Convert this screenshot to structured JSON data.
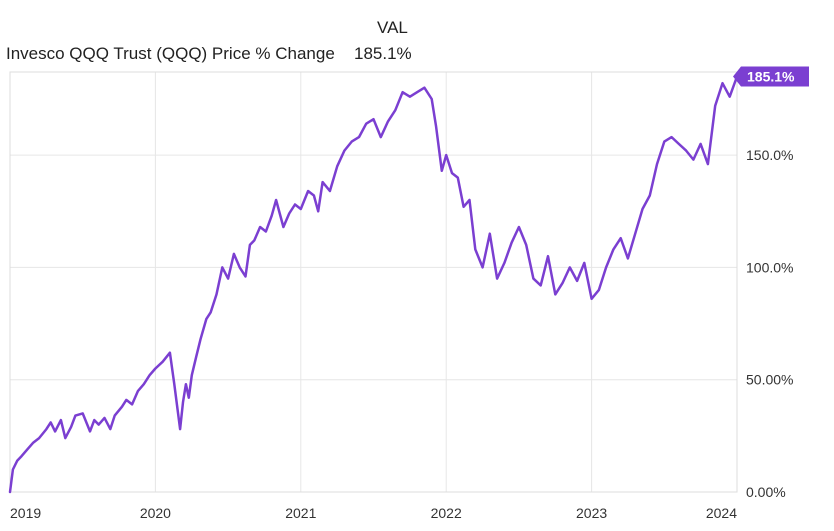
{
  "legend": {
    "column_header": "VAL",
    "series_name": "Invesco QQQ Trust (QQQ) Price % Change",
    "series_value": "185.1%"
  },
  "chart_data": {
    "type": "line",
    "title": "",
    "xlabel": "",
    "ylabel": "",
    "x_ticks": [
      "2019",
      "2020",
      "2021",
      "2022",
      "2023",
      "2024"
    ],
    "y_ticks": [
      "0.00%",
      "50.00%",
      "100.0%",
      "150.0%"
    ],
    "xlim": [
      2019.0,
      2024.0
    ],
    "ylim": [
      0,
      187
    ],
    "grid": true,
    "line_color": "#7b3fd1",
    "end_label": "185.1%",
    "series": [
      {
        "name": "Invesco QQQ Trust (QQQ) Price % Change",
        "x": [
          2019.0,
          2019.02,
          2019.05,
          2019.08,
          2019.12,
          2019.16,
          2019.2,
          2019.25,
          2019.28,
          2019.31,
          2019.35,
          2019.38,
          2019.42,
          2019.45,
          2019.5,
          2019.55,
          2019.58,
          2019.61,
          2019.65,
          2019.69,
          2019.72,
          2019.77,
          2019.8,
          2019.84,
          2019.88,
          2019.92,
          2019.96,
          2020.0,
          2020.05,
          2020.1,
          2020.13,
          2020.15,
          2020.17,
          2020.19,
          2020.21,
          2020.23,
          2020.25,
          2020.28,
          2020.31,
          2020.35,
          2020.38,
          2020.42,
          2020.46,
          2020.5,
          2020.54,
          2020.58,
          2020.62,
          2020.65,
          2020.68,
          2020.72,
          2020.76,
          2020.8,
          2020.83,
          2020.88,
          2020.92,
          2020.96,
          2021.0,
          2021.05,
          2021.09,
          2021.12,
          2021.15,
          2021.2,
          2021.25,
          2021.3,
          2021.35,
          2021.4,
          2021.45,
          2021.5,
          2021.55,
          2021.6,
          2021.65,
          2021.7,
          2021.75,
          2021.8,
          2021.85,
          2021.9,
          2021.93,
          2021.97,
          2022.0,
          2022.04,
          2022.08,
          2022.12,
          2022.16,
          2022.2,
          2022.25,
          2022.3,
          2022.35,
          2022.4,
          2022.45,
          2022.5,
          2022.55,
          2022.6,
          2022.65,
          2022.7,
          2022.75,
          2022.8,
          2022.85,
          2022.9,
          2022.95,
          2023.0,
          2023.05,
          2023.1,
          2023.15,
          2023.2,
          2023.25,
          2023.3,
          2023.35,
          2023.4,
          2023.45,
          2023.5,
          2023.55,
          2023.6,
          2023.65,
          2023.7,
          2023.75,
          2023.8,
          2023.85,
          2023.9,
          2023.95,
          2024.0
        ],
        "y": [
          0,
          10,
          14,
          16,
          19,
          22,
          24,
          28,
          31,
          27,
          32,
          24,
          29,
          34,
          35,
          27,
          32,
          30,
          33,
          28,
          34,
          38,
          41,
          39,
          45,
          48,
          52,
          55,
          58,
          62,
          48,
          38,
          28,
          40,
          48,
          42,
          52,
          60,
          68,
          77,
          80,
          88,
          100,
          95,
          106,
          100,
          96,
          110,
          112,
          118,
          116,
          123,
          130,
          118,
          124,
          128,
          126,
          134,
          132,
          125,
          138,
          134,
          145,
          152,
          156,
          158,
          164,
          166,
          158,
          165,
          170,
          178,
          176,
          178,
          180,
          175,
          163,
          143,
          150,
          142,
          140,
          127,
          130,
          108,
          100,
          115,
          95,
          102,
          111,
          118,
          110,
          95,
          92,
          105,
          88,
          93,
          100,
          94,
          102,
          86,
          90,
          100,
          108,
          113,
          104,
          115,
          126,
          132,
          146,
          156,
          158,
          155,
          152,
          148,
          155,
          146,
          172,
          182,
          176,
          185
        ]
      }
    ]
  }
}
